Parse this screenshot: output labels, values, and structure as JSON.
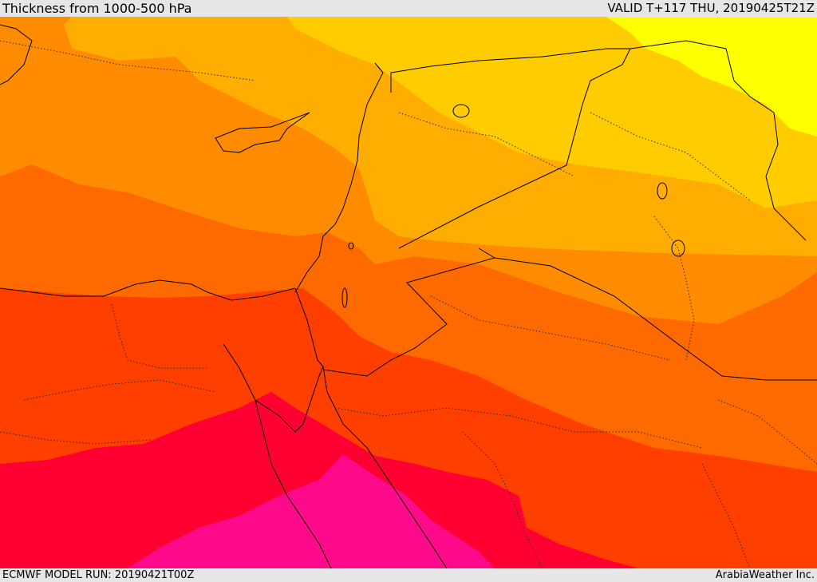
{
  "header": {
    "title": "Thickness from 1000-500 hPa",
    "valid_time": "VALID T+117 THU, 20190425T21Z"
  },
  "footer": {
    "model_run": "ECMWF MODEL RUN: 20190421T00Z",
    "credit": "ArabiaWeather Inc."
  },
  "map": {
    "palette": {
      "level_1": "#ffff00",
      "level_2": "#ffcc00",
      "level_3": "#ffad00",
      "level_4": "#ff8c00",
      "level_5": "#ff6a00",
      "level_6": "#ff3f00",
      "level_7": "#ff0033",
      "level_8": "#ff0a8a"
    },
    "line_colors": {
      "borders": "#000000",
      "internal_borders": "#2a2a2a"
    }
  }
}
